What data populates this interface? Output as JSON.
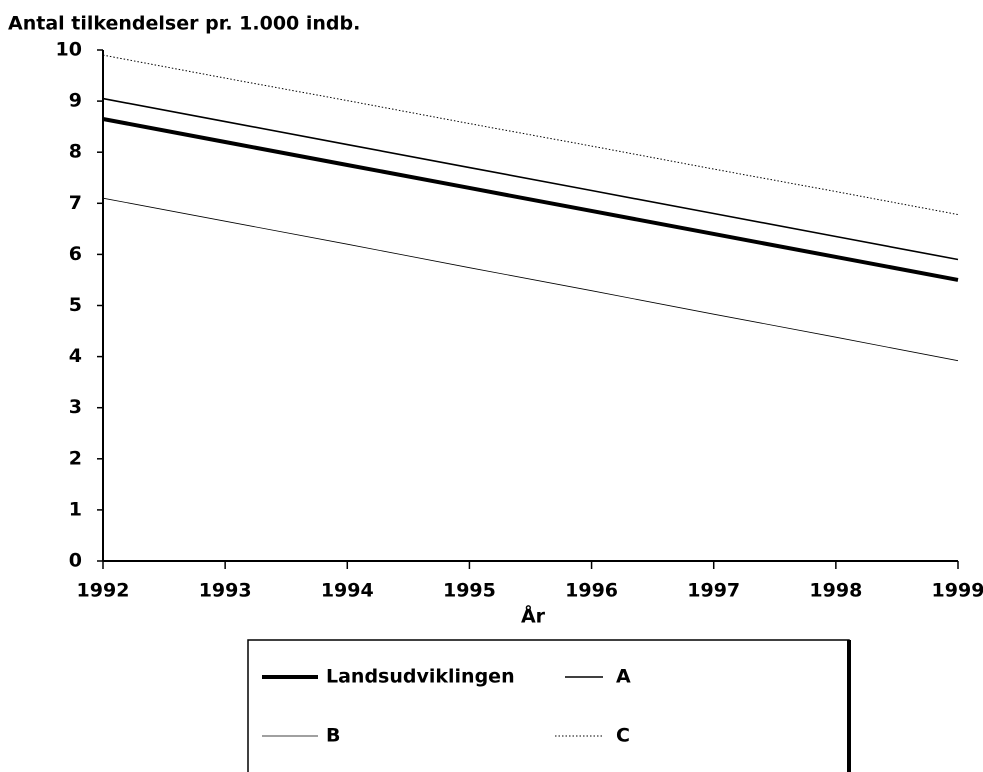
{
  "chart_data": {
    "type": "line",
    "y_axis_title": "Antal tilkendelser pr. 1.000 indb.",
    "x_axis_title": "År",
    "x": [
      1992,
      1993,
      1994,
      1995,
      1996,
      1997,
      1998,
      1999
    ],
    "xlim": [
      1992,
      1999
    ],
    "xticks": [
      1992,
      1993,
      1994,
      1995,
      1996,
      1997,
      1998,
      1999
    ],
    "ylim": [
      0,
      10
    ],
    "yticks": [
      0,
      1,
      2,
      3,
      4,
      5,
      6,
      7,
      8,
      9,
      10
    ],
    "grid": false,
    "legend": "bottom",
    "series": [
      {
        "name": "Landsudviklingen",
        "color": "#000000",
        "line_width": 4,
        "dash": "solid",
        "values": [
          8.65,
          8.2,
          7.75,
          7.3,
          6.85,
          6.4,
          5.95,
          5.5
        ]
      },
      {
        "name": "A",
        "color": "#000000",
        "line_width": 1.6,
        "dash": "solid",
        "values": [
          9.05,
          8.6,
          8.15,
          7.7,
          7.25,
          6.8,
          6.35,
          5.9
        ]
      },
      {
        "name": "B",
        "color": "#000000",
        "line_width": 0.8,
        "dash": "solid",
        "values": [
          7.1,
          6.65,
          6.2,
          5.74,
          5.29,
          4.83,
          4.38,
          3.92
        ]
      },
      {
        "name": "C",
        "color": "#000000",
        "line_width": 1,
        "dash": "dotted",
        "values": [
          9.9,
          9.45,
          9.01,
          8.56,
          8.12,
          7.67,
          7.23,
          6.78
        ]
      }
    ]
  }
}
